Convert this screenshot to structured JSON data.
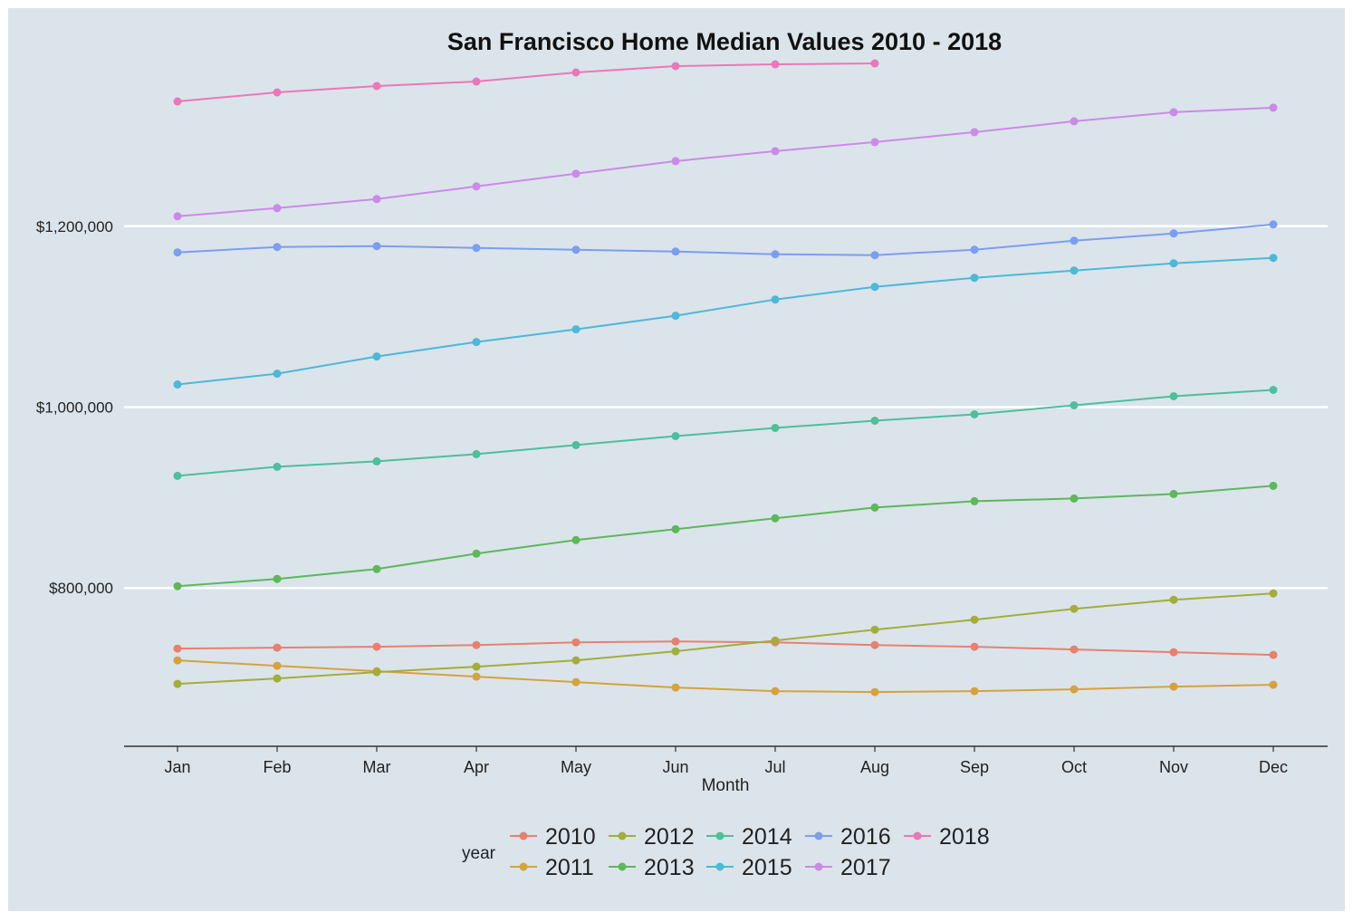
{
  "chart_data": {
    "type": "line",
    "title": "San Francisco Home Median Values 2010 - 2018",
    "xlabel": "Month",
    "ylabel": "",
    "categories": [
      "Jan",
      "Feb",
      "Mar",
      "Apr",
      "May",
      "Jun",
      "Jul",
      "Aug",
      "Sep",
      "Oct",
      "Nov",
      "Dec"
    ],
    "ylim": [
      625000,
      1370000
    ],
    "y_ticks": [
      800000,
      1000000,
      1200000
    ],
    "y_tick_labels": [
      "$800,000",
      "$1,000,000",
      "$1,200,000"
    ],
    "grid": "horizontal major lines",
    "legend": {
      "title": "year",
      "position": "bottom"
    },
    "colors": {
      "panel_background": "#dbe4eb",
      "grid_line": "#ffffff",
      "axis_line": "#333333"
    },
    "series": [
      {
        "name": "2010",
        "color": "#e8806f",
        "values": [
          733000,
          734000,
          735000,
          737000,
          740000,
          741000,
          740000,
          737000,
          735000,
          732000,
          729000,
          726000
        ]
      },
      {
        "name": "2011",
        "color": "#d6a23d",
        "values": [
          720000,
          714000,
          708000,
          702000,
          696000,
          690000,
          686000,
          685000,
          686000,
          688000,
          691000,
          693000
        ]
      },
      {
        "name": "2012",
        "color": "#a3ad3b",
        "values": [
          694000,
          700000,
          707000,
          713000,
          720000,
          730000,
          742000,
          754000,
          765000,
          777000,
          787000,
          794000
        ]
      },
      {
        "name": "2013",
        "color": "#5db85a",
        "values": [
          802000,
          810000,
          821000,
          838000,
          853000,
          865000,
          877000,
          889000,
          896000,
          899000,
          904000,
          913000
        ]
      },
      {
        "name": "2014",
        "color": "#4dbf9c",
        "values": [
          924000,
          934000,
          940000,
          948000,
          958000,
          968000,
          977000,
          985000,
          992000,
          1002000,
          1012000,
          1019000
        ]
      },
      {
        "name": "2015",
        "color": "#4db8d8",
        "values": [
          1025000,
          1037000,
          1056000,
          1072000,
          1086000,
          1101000,
          1119000,
          1133000,
          1143000,
          1151000,
          1159000,
          1165000
        ]
      },
      {
        "name": "2016",
        "color": "#7b9ef0",
        "values": [
          1171000,
          1177000,
          1178000,
          1176000,
          1174000,
          1172000,
          1169000,
          1168000,
          1174000,
          1184000,
          1192000,
          1202000
        ]
      },
      {
        "name": "2017",
        "color": "#cc8ae8",
        "values": [
          1211000,
          1220000,
          1230000,
          1244000,
          1258000,
          1272000,
          1283000,
          1293000,
          1304000,
          1316000,
          1326000,
          1331000
        ]
      },
      {
        "name": "2018",
        "color": "#ec77b8",
        "values": [
          1338000,
          1348000,
          1355000,
          1360000,
          1370000,
          1377000,
          1379000,
          1380000,
          null,
          null,
          null,
          null
        ]
      }
    ]
  }
}
